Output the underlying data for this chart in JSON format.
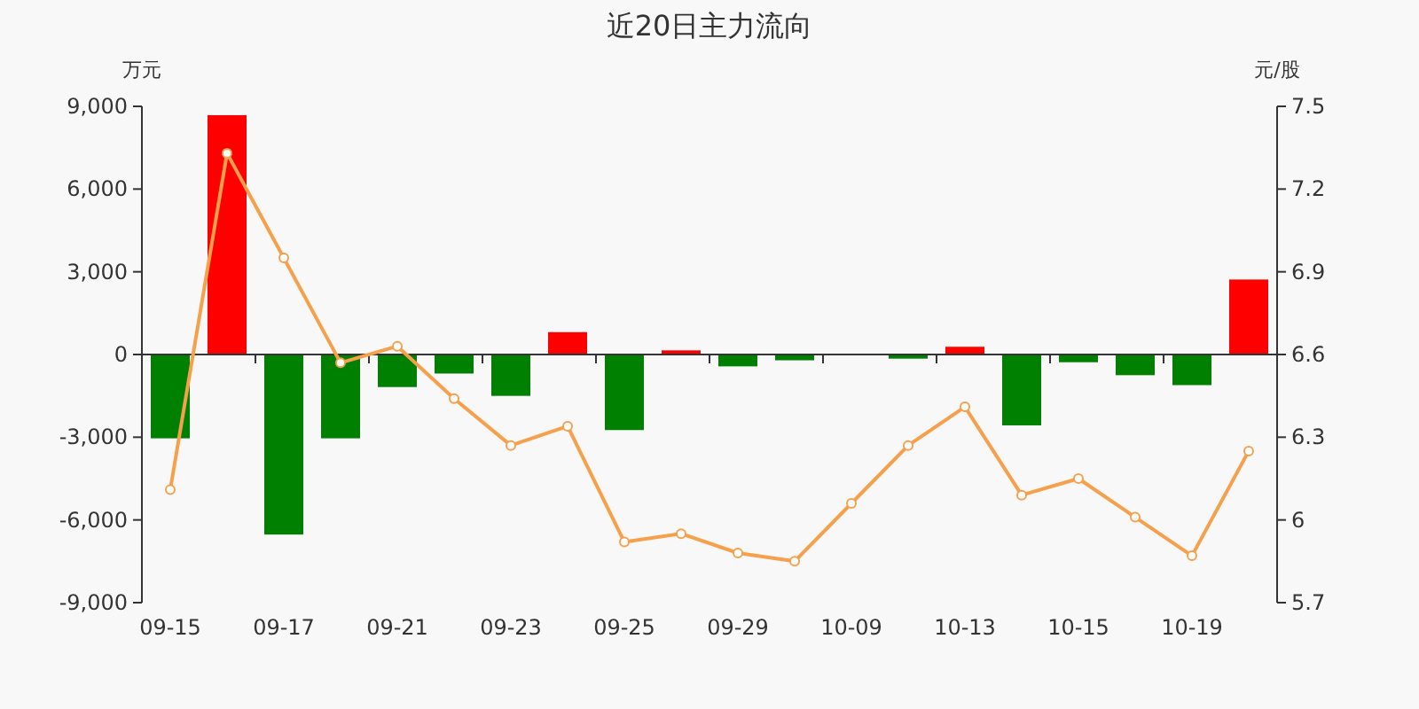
{
  "chart_data": {
    "type": "bar",
    "title": "近20日主力流向",
    "ylabel": "万元",
    "y2label": "元/股",
    "categories": [
      "09-15",
      null,
      "09-17",
      null,
      "09-21",
      null,
      "09-23",
      null,
      "09-25",
      null,
      "09-29",
      null,
      "10-09",
      null,
      "10-13",
      null,
      "10-15",
      null,
      "10-19",
      null
    ],
    "series": [
      {
        "values": [
          -3040,
          8680,
          -6530,
          -3040,
          -1180,
          -690,
          -1500,
          810,
          -2740,
          150,
          -430,
          -210,
          -30,
          -150,
          280,
          -2570,
          -280,
          -750,
          -1110,
          2720
        ],
        "colors": [
          "#008000",
          "#ff0000",
          "#008000",
          "#008000",
          "#008000",
          "#008000",
          "#008000",
          "#ff0000",
          "#008000",
          "#ff0000",
          "#008000",
          "#008000",
          "#008000",
          "#008000",
          "#ff0000",
          "#008000",
          "#008000",
          "#008000",
          "#008000",
          "#ff0000"
        ]
      },
      {
        "type": "line",
        "axis": "y2",
        "color": "#f7a04b",
        "marker": "circle",
        "values": [
          6.11,
          7.33,
          6.95,
          6.57,
          6.63,
          6.44,
          6.27,
          6.34,
          5.92,
          5.95,
          5.88,
          5.85,
          6.06,
          6.27,
          6.41,
          6.09,
          6.15,
          6.01,
          5.87,
          6.25
        ]
      }
    ],
    "ylim": [
      -9000,
      9000
    ],
    "yticks": [
      {
        "value": -9000,
        "label": "-9,000"
      },
      {
        "value": -6000,
        "label": "-6,000"
      },
      {
        "value": -3000,
        "label": "-3,000"
      },
      0,
      {
        "value": 3000,
        "label": "3,000"
      },
      {
        "value": 6000,
        "label": "6,000"
      },
      {
        "value": 9000,
        "label": "9,000"
      }
    ],
    "y2lim": [
      5.7,
      7.5
    ],
    "y2ticks": [
      5.7,
      6,
      6.3,
      6.6,
      6.9,
      7.2,
      7.5
    ]
  }
}
